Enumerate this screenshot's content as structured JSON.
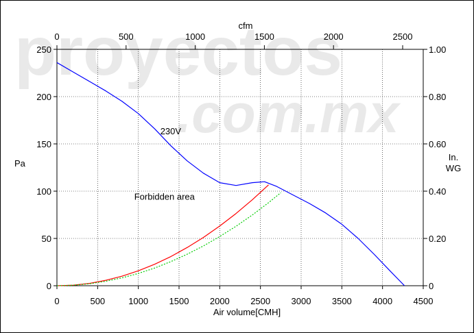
{
  "watermark": {
    "line1": "proyectos",
    "line2": ".com.mx"
  },
  "chart_data": {
    "type": "line",
    "title": "",
    "xlabel": "Air volume[CMH]",
    "ylabel": "Pa",
    "x2label": "cfm",
    "y2label_line1": "In.",
    "y2label_line2": "WG",
    "xlim": [
      0,
      4500
    ],
    "ylim": [
      0,
      250
    ],
    "x2lim": [
      0,
      2648.8
    ],
    "y2lim": [
      0,
      1.0
    ],
    "grid": true,
    "x_ticks": [
      "0",
      "500",
      "1000",
      "1500",
      "2000",
      "2500",
      "3000",
      "3500",
      "4000",
      "4500"
    ],
    "x_tick_values": [
      0,
      500,
      1000,
      1500,
      2000,
      2500,
      3000,
      3500,
      4000,
      4500
    ],
    "y_ticks": [
      "0",
      "50",
      "100",
      "150",
      "200",
      "250"
    ],
    "y_tick_values": [
      0,
      50,
      100,
      150,
      200,
      250
    ],
    "x2_ticks": [
      "0",
      "500",
      "1000",
      "1500",
      "2000",
      "2500"
    ],
    "x2_tick_values": [
      0,
      500,
      1000,
      1500,
      2000,
      2500
    ],
    "y2_ticks": [
      "0",
      "0.20",
      "0.40",
      "0.60",
      "0.80",
      "1.00"
    ],
    "y2_tick_values": [
      0,
      0.2,
      0.4,
      0.6,
      0.8,
      1.0
    ],
    "annotations": [
      {
        "text": "230V",
        "x": 1270,
        "y": 160
      },
      {
        "text": "Forbidden area",
        "x": 950,
        "y": 91
      }
    ],
    "series": [
      {
        "color": "#0000ff",
        "style": "solid",
        "x": [
          0,
          200,
          400,
          600,
          800,
          1000,
          1200,
          1400,
          1600,
          1800,
          2000,
          2200,
          2400,
          2550,
          2700,
          2900,
          3100,
          3300,
          3500,
          3700,
          3900,
          4100,
          4270
        ],
        "y": [
          236,
          226,
          216,
          206,
          195,
          182,
          166,
          148,
          132,
          119,
          109,
          106,
          109,
          110,
          105,
          96,
          87,
          77,
          65,
          50,
          33,
          15,
          0
        ]
      },
      {
        "color": "#ff0000",
        "style": "solid",
        "x": [
          0,
          200,
          400,
          600,
          800,
          1000,
          1200,
          1400,
          1600,
          1800,
          2000,
          2200,
          2400,
          2600
        ],
        "y": [
          0,
          0.6,
          2.5,
          5.7,
          10.1,
          15.8,
          22.7,
          30.9,
          40.4,
          51.1,
          63.1,
          76.4,
          90.9,
          106.7
        ]
      },
      {
        "color": "#00cc00",
        "style": "dashed",
        "x": [
          0,
          200,
          400,
          600,
          800,
          1000,
          1200,
          1400,
          1600,
          1800,
          2000,
          2200,
          2400,
          2600,
          2750
        ],
        "y": [
          0,
          0.5,
          2.1,
          4.7,
          8.3,
          13.0,
          18.7,
          25.5,
          33.3,
          42.1,
          52.0,
          62.9,
          74.8,
          87.8,
          98.3
        ]
      }
    ]
  }
}
